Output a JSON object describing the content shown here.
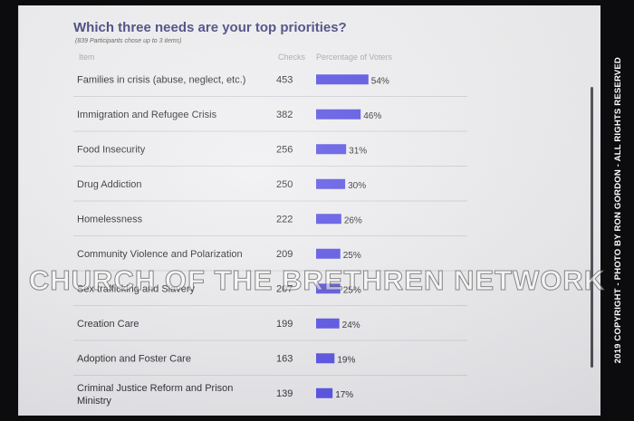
{
  "title": "Which three needs are your top priorities?",
  "subtitle": "(839 Participants chose up to 3 items)",
  "headers": {
    "item": "Item",
    "checks": "Checks",
    "percentage": "Percentage of Voters"
  },
  "watermark": "CHURCH OF THE BRETHREN NETWORK",
  "copyright": "2019 COPYRIGHT - PHOTO BY RON GORDON - ALL RIGHTS RESERVED",
  "colors": {
    "bar": "#4f47e3",
    "title": "#3d3c7a",
    "divider": "#cfcfd6"
  },
  "chart_data": {
    "type": "bar",
    "orientation": "horizontal",
    "title": "Which three needs are your top priorities?",
    "categories": [
      [
        "Families in crisis (abuse, neglect, etc.)"
      ],
      [
        "Immigration and Refugee Crisis"
      ],
      [
        "Food Insecurity"
      ],
      [
        "Drug Addiction"
      ],
      [
        "Homelessness"
      ],
      [
        "Community Violence and Polarization"
      ],
      [
        "Sex trafficking and Slavery"
      ],
      [
        "Creation Care"
      ],
      [
        "Adoption and Foster Care"
      ],
      [
        "Criminal Justice Reform and Prison",
        "Ministry"
      ]
    ],
    "checks": [
      453,
      382,
      256,
      250,
      222,
      209,
      207,
      199,
      163,
      139
    ],
    "values": [
      54,
      46,
      31,
      30,
      26,
      25,
      25,
      24,
      19,
      17
    ],
    "value_labels": [
      "54%",
      "46%",
      "31%",
      "30%",
      "26%",
      "25%",
      "25%",
      "24%",
      "19%",
      "17%"
    ],
    "value_unit": "%",
    "xlim": [
      0,
      100
    ],
    "grid": false,
    "legend": "none"
  }
}
